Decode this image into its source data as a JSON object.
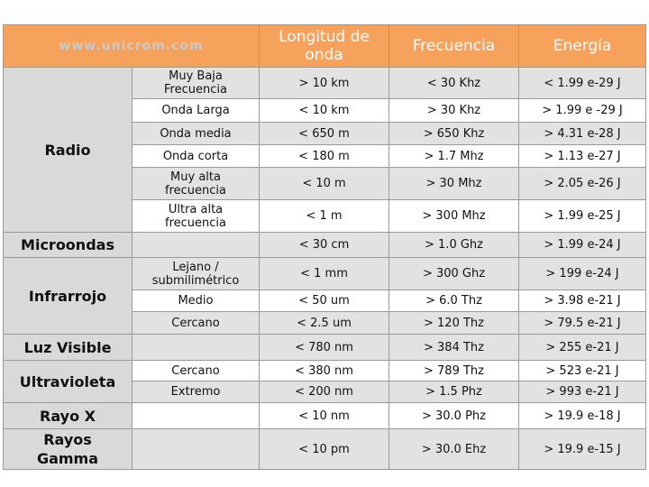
{
  "header": {
    "site": "www.unicrom.com",
    "col_longitud": "Longitud de onda",
    "col_frecuencia": "Frecuencia",
    "col_energia": "Energía"
  },
  "categories": [
    "Radio",
    "Microondas",
    "Infrarrojo",
    "Luz Visible",
    "Ultravioleta",
    "Rayo X",
    "Rayos Gamma"
  ],
  "rows": [
    {
      "sub": "Muy Baja Frecuencia",
      "longitud": "> 10 km",
      "frecuencia": "< 30 Khz",
      "energia": "< 1.99 e-29 J"
    },
    {
      "sub": "Onda Larga",
      "longitud": "< 10 km",
      "frecuencia": "> 30 Khz",
      "energia": "> 1.99 e -29 J"
    },
    {
      "sub": "Onda media",
      "longitud": "< 650 m",
      "frecuencia": "> 650 Khz",
      "energia": "> 4.31 e-28 J"
    },
    {
      "sub": "Onda corta",
      "longitud": "< 180 m",
      "frecuencia": "> 1.7 Mhz",
      "energia": "> 1.13 e-27 J"
    },
    {
      "sub": "Muy alta frecuencia",
      "longitud": "< 10 m",
      "frecuencia": "> 30 Mhz",
      "energia": "> 2.05 e-26 J"
    },
    {
      "sub": "Ultra alta frecuencia",
      "longitud": "< 1 m",
      "frecuencia": "> 300 Mhz",
      "energia": "> 1.99 e-25 J"
    },
    {
      "sub": "",
      "longitud": "< 30 cm",
      "frecuencia": "> 1.0 Ghz",
      "energia": "> 1.99 e-24 J"
    },
    {
      "sub": "Lejano / submilimétrico",
      "longitud": "< 1 mm",
      "frecuencia": "> 300 Ghz",
      "energia": "> 199 e-24 J"
    },
    {
      "sub": "Medio",
      "longitud": "< 50 um",
      "frecuencia": "> 6.0 Thz",
      "energia": "> 3.98 e-21 J"
    },
    {
      "sub": "Cercano",
      "longitud": "< 2.5 um",
      "frecuencia": "> 120 Thz",
      "energia": "> 79.5 e-21 J"
    },
    {
      "sub": "",
      "longitud": "< 780 nm",
      "frecuencia": "> 384 Thz",
      "energia": "> 255 e-21 J"
    },
    {
      "sub": "Cercano",
      "longitud": "< 380 nm",
      "frecuencia": "> 789 Thz",
      "energia": "> 523 e-21 J"
    },
    {
      "sub": "Extremo",
      "longitud": "< 200 nm",
      "frecuencia": "> 1.5 Phz",
      "energia": "> 993 e-21 J"
    },
    {
      "sub": "",
      "longitud": "< 10 nm",
      "frecuencia": "> 30.0 Phz",
      "energia": "> 19.9 e-18 J"
    },
    {
      "sub": "",
      "longitud": "< 10 pm",
      "frecuencia": "> 30.0 Ehz",
      "energia": "> 19.9 e-15 J"
    }
  ]
}
